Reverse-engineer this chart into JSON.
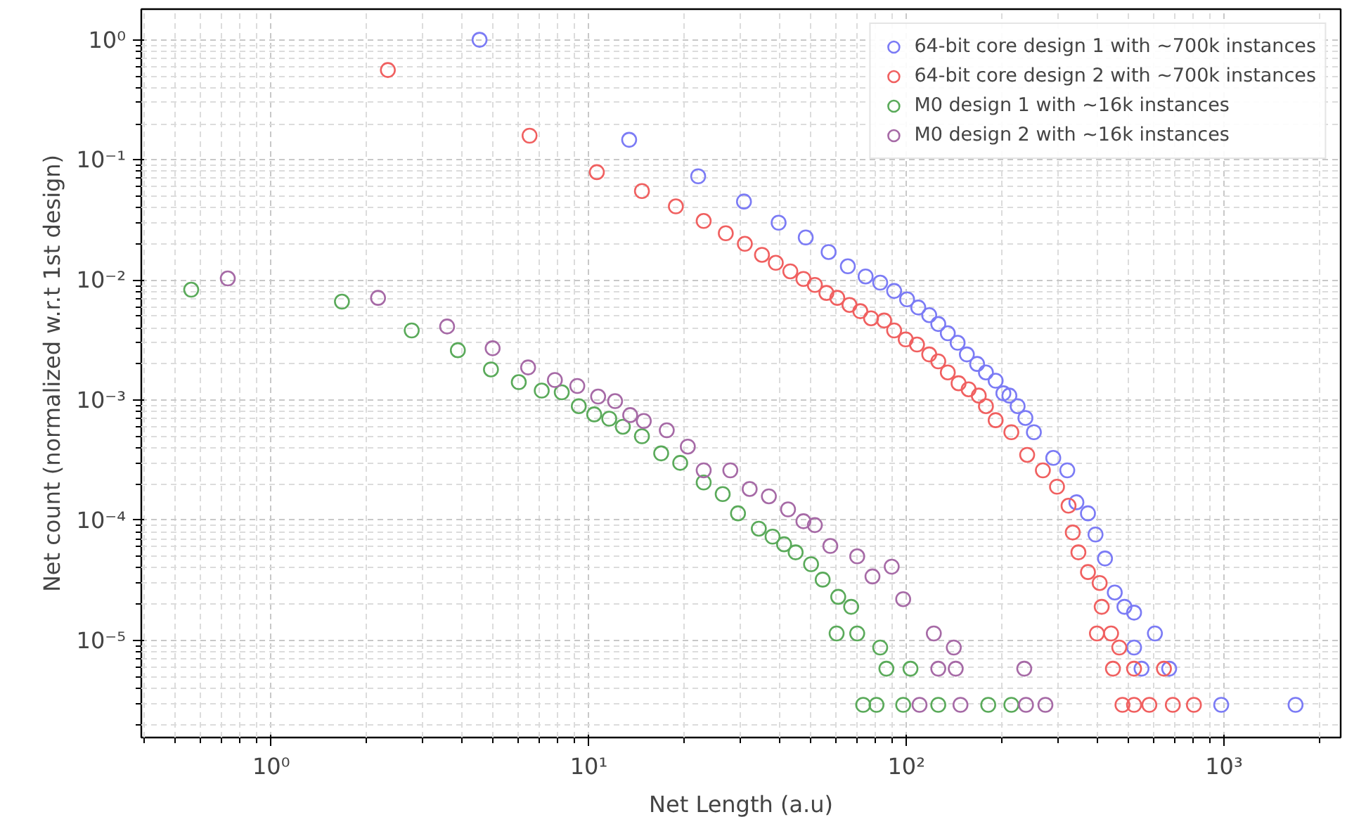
{
  "chart_data": {
    "type": "scatter",
    "xlabel": "Net Length (a.u)",
    "ylabel": "Net count (normalized w.r.t 1st design)",
    "log": "xy",
    "grid": true,
    "legend": "top right",
    "marker": "circle",
    "xlim": [
      0.39,
      2330
    ],
    "ylim": [
      1.55e-06,
      1.8
    ],
    "xticks": [
      {
        "value": 1,
        "label": "10⁰"
      },
      {
        "value": 10,
        "label": "10¹"
      },
      {
        "value": 100,
        "label": "10²"
      },
      {
        "value": 1000,
        "label": "10³"
      }
    ],
    "yticks": [
      {
        "value": 1e-05,
        "label": "10⁻⁵"
      },
      {
        "value": 0.0001,
        "label": "10⁻⁴"
      },
      {
        "value": 0.001,
        "label": "10⁻³"
      },
      {
        "value": 0.01,
        "label": "10⁻²"
      },
      {
        "value": 0.1,
        "label": "10⁻¹"
      },
      {
        "value": 1,
        "label": "10⁰"
      }
    ],
    "series": [
      {
        "name": "64-bit core design 1 with ~700k instances",
        "color": "#7b7bf5",
        "x": [
          4.53,
          13.4,
          22.1,
          30.8,
          39.6,
          48.2,
          56.9,
          65.4,
          74.4,
          82.7,
          91.5,
          100.5,
          109,
          118,
          126,
          135,
          145,
          155,
          167,
          178,
          191,
          202,
          211,
          224,
          237,
          252,
          290,
          321,
          343,
          373,
          394,
          422,
          453,
          486,
          521,
          606,
          521,
          672,
          550,
          980,
          1680
        ],
        "values": [
          1.0,
          0.147,
          0.073,
          0.045,
          0.03,
          0.0226,
          0.0171,
          0.013,
          0.0107,
          0.0095,
          0.0081,
          0.0069,
          0.0059,
          0.0051,
          0.0043,
          0.0036,
          0.003,
          0.0024,
          0.002,
          0.0017,
          0.00145,
          0.00114,
          0.00109,
          0.00089,
          0.00071,
          0.00054,
          0.00033,
          0.00026,
          0.000141,
          0.000114,
          7.6e-05,
          4.8e-05,
          2.5e-05,
          1.9e-05,
          1.7e-05,
          1.14e-05,
          8.7e-06,
          5.8e-06,
          5.8e-06,
          2.9e-06,
          2.9e-06
        ]
      },
      {
        "name": "64-bit core design 2 with ~700k instances",
        "color": "#f06060",
        "x": [
          2.33,
          6.51,
          10.6,
          14.7,
          18.8,
          23.0,
          27.0,
          31.0,
          35.1,
          38.8,
          43.1,
          47.4,
          51.5,
          56.0,
          60.6,
          66.2,
          71.6,
          77.4,
          85.1,
          91.5,
          99.5,
          108,
          118,
          126,
          135,
          146,
          157,
          169,
          178,
          191,
          214,
          240,
          269,
          298,
          324,
          334,
          348,
          373,
          406,
          412,
          398,
          441,
          468,
          447,
          521,
          647,
          479,
          521,
          582,
          690,
          804
        ],
        "values": [
          0.56,
          0.159,
          0.079,
          0.055,
          0.041,
          0.031,
          0.0245,
          0.02,
          0.0162,
          0.0139,
          0.0118,
          0.0102,
          0.0091,
          0.0078,
          0.0071,
          0.0062,
          0.0055,
          0.0048,
          0.0046,
          0.0038,
          0.0032,
          0.0029,
          0.0024,
          0.0021,
          0.0017,
          0.00138,
          0.00123,
          0.00109,
          0.00089,
          0.00068,
          0.00054,
          0.00035,
          0.00026,
          0.00019,
          0.000132,
          7.9e-05,
          5.4e-05,
          3.7e-05,
          3e-05,
          1.9e-05,
          1.14e-05,
          1.14e-05,
          8.7e-06,
          5.8e-06,
          5.8e-06,
          5.8e-06,
          2.9e-06,
          2.9e-06,
          2.9e-06,
          2.9e-06,
          2.9e-06
        ]
      },
      {
        "name": "M0 design 1 with ~16k instances",
        "color": "#5aaa5a",
        "x": [
          0.56,
          1.67,
          2.77,
          3.87,
          4.92,
          6.02,
          7.11,
          8.22,
          9.3,
          10.4,
          11.6,
          12.8,
          14.7,
          16.9,
          19.4,
          23.0,
          26.4,
          29.5,
          34.3,
          37.9,
          41.2,
          44.8,
          50.1,
          54.5,
          61.0,
          67.0,
          60.3,
          70.0,
          82.7,
          86.5,
          103,
          73.1,
          80.5,
          97.7,
          126,
          181,
          214
        ],
        "values": [
          0.0083,
          0.0066,
          0.0038,
          0.0026,
          0.0018,
          0.00141,
          0.0012,
          0.00116,
          0.00089,
          0.00076,
          0.0007,
          0.0006,
          0.0005,
          0.00036,
          0.0003,
          0.000206,
          0.000165,
          0.000114,
          8.5e-05,
          7.3e-05,
          6.3e-05,
          5.4e-05,
          4.3e-05,
          3.2e-05,
          2.3e-05,
          1.9e-05,
          1.14e-05,
          1.14e-05,
          8.7e-06,
          5.8e-06,
          5.8e-06,
          2.9e-06,
          2.9e-06,
          2.9e-06,
          2.9e-06,
          2.9e-06,
          2.9e-06
        ]
      },
      {
        "name": "M0 design 2 with ~16k instances",
        "color": "#a66aa6",
        "x": [
          0.73,
          2.17,
          3.58,
          4.98,
          6.44,
          7.82,
          9.2,
          10.7,
          12.1,
          13.5,
          14.9,
          17.6,
          20.5,
          23.0,
          27.9,
          32.1,
          36.9,
          42.4,
          47.4,
          51.5,
          57.6,
          70.0,
          78.2,
          89.9,
          97.7,
          122,
          141,
          126,
          143,
          235,
          110,
          148,
          238,
          274
        ],
        "values": [
          0.0103,
          0.0071,
          0.0041,
          0.0027,
          0.00187,
          0.00147,
          0.00131,
          0.00107,
          0.00098,
          0.00075,
          0.00067,
          0.00056,
          0.00041,
          0.00026,
          0.00026,
          0.000182,
          0.000158,
          0.000123,
          9.8e-05,
          9.1e-05,
          6.1e-05,
          5e-05,
          3.4e-05,
          4.1e-05,
          2.2e-05,
          1.14e-05,
          8.7e-06,
          5.8e-06,
          5.8e-06,
          5.8e-06,
          2.9e-06,
          2.9e-06,
          2.9e-06,
          2.9e-06
        ]
      }
    ]
  }
}
